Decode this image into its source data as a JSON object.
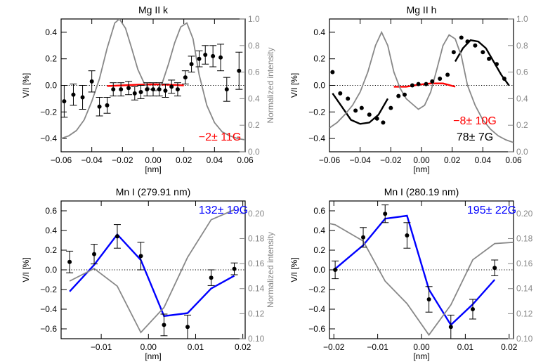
{
  "chart_data": [
    {
      "type": "scatter",
      "title": "Mg II k",
      "xlabel": "[nm]",
      "ylabel": "V/I [%]",
      "y2label": "Normalized intensity",
      "xlim": [
        -0.06,
        0.06
      ],
      "ylim": [
        -0.5,
        0.5
      ],
      "y2lim": [
        0.0,
        1.0
      ],
      "x_ticks": [
        "-0.06",
        "-0.04",
        "-0.02",
        "0.00",
        "0.02",
        "0.04",
        "0.06"
      ],
      "y_ticks": [
        "-0.4",
        "-0.2",
        "0.0",
        "0.2",
        "0.4"
      ],
      "y2_ticks": [
        "0.0",
        "0.2",
        "0.4",
        "0.6",
        "0.8",
        "1.0"
      ],
      "annotations": [
        {
          "text": "−2± 11G",
          "color": "#ff0000"
        }
      ],
      "series": [
        {
          "type": "errorbar",
          "color": "#000000",
          "x": [
            -0.058,
            -0.052,
            -0.046,
            -0.04,
            -0.035,
            -0.03,
            -0.026,
            -0.021,
            -0.016,
            -0.012,
            -0.008,
            -0.004,
            0.0,
            0.004,
            0.008,
            0.012,
            0.016,
            0.021,
            0.025,
            0.03,
            0.034,
            0.039,
            0.044,
            0.048,
            0.056
          ],
          "y": [
            -0.12,
            -0.07,
            -0.09,
            0.03,
            -0.16,
            -0.15,
            -0.03,
            -0.03,
            -0.02,
            -0.06,
            -0.05,
            -0.03,
            -0.03,
            -0.03,
            -0.04,
            -0.01,
            -0.03,
            0.06,
            0.16,
            0.2,
            0.23,
            0.22,
            0.21,
            -0.03,
            0.11
          ],
          "err": [
            0.12,
            0.08,
            0.09,
            0.08,
            0.07,
            0.06,
            0.05,
            0.05,
            0.05,
            0.05,
            0.05,
            0.05,
            0.05,
            0.05,
            0.05,
            0.05,
            0.05,
            0.05,
            0.06,
            0.06,
            0.07,
            0.08,
            0.1,
            0.09,
            0.14
          ]
        },
        {
          "type": "line",
          "color": "#ff0000",
          "x": [
            -0.03,
            -0.02,
            -0.01,
            0.0,
            0.01,
            0.02
          ],
          "y": [
            -0.005,
            0.0,
            0.005,
            0.008,
            0.005,
            0.0
          ]
        },
        {
          "type": "line",
          "color": "#888888",
          "axis": "y2",
          "x": [
            -0.06,
            -0.055,
            -0.05,
            -0.045,
            -0.04,
            -0.035,
            -0.03,
            -0.025,
            -0.022,
            -0.018,
            -0.014,
            -0.01,
            -0.006,
            -0.002,
            0.002,
            0.006,
            0.01,
            0.014,
            0.018,
            0.022,
            0.026,
            0.03,
            0.035,
            0.04,
            0.045,
            0.05,
            0.055,
            0.06
          ],
          "y": [
            0.1,
            0.12,
            0.16,
            0.24,
            0.38,
            0.55,
            0.78,
            0.97,
            1.0,
            0.93,
            0.78,
            0.62,
            0.52,
            0.47,
            0.46,
            0.52,
            0.66,
            0.82,
            0.94,
            0.97,
            0.85,
            0.58,
            0.35,
            0.22,
            0.15,
            0.12,
            0.1,
            0.09
          ]
        }
      ]
    },
    {
      "type": "scatter",
      "title": "Mg II h",
      "xlabel": "[nm]",
      "ylabel": "V/I [%]",
      "xlim": [
        -0.06,
        0.06
      ],
      "ylim": [
        -0.5,
        0.5
      ],
      "y2lim": [
        0.0,
        1.0
      ],
      "x_ticks": [
        "-0.06",
        "-0.04",
        "-0.02",
        "0.00",
        "0.02",
        "0.04",
        "0.06"
      ],
      "y_ticks": [
        "-0.4",
        "-0.2",
        "0.0",
        "0.2",
        "0.4"
      ],
      "y2_ticks": [
        "0.0",
        "0.2",
        "0.4",
        "0.6",
        "0.8",
        "1.0"
      ],
      "annotations": [
        {
          "text": "−8± 10G",
          "color": "#ff0000"
        },
        {
          "text": "78±  7G",
          "color": "#000000"
        }
      ],
      "series": [
        {
          "type": "errorbar",
          "color": "#000000",
          "x": [
            -0.058,
            -0.053,
            -0.048,
            -0.043,
            -0.039,
            -0.034,
            -0.029,
            -0.025,
            -0.02,
            -0.015,
            -0.011,
            -0.006,
            -0.002,
            0.003,
            0.007,
            0.012,
            0.017,
            0.021,
            0.026,
            0.03,
            0.035,
            0.04,
            0.044,
            0.049,
            0.054
          ],
          "y": [
            0.1,
            -0.06,
            -0.1,
            -0.19,
            -0.17,
            -0.22,
            -0.25,
            -0.28,
            -0.17,
            -0.08,
            -0.07,
            0.0,
            0.01,
            0.01,
            0.03,
            0.05,
            0.08,
            0.25,
            0.36,
            0.33,
            0.3,
            0.25,
            0.2,
            0.16,
            0.05
          ]
        },
        {
          "type": "line",
          "color": "#000000",
          "x": [
            -0.058,
            -0.052,
            -0.046,
            -0.04,
            -0.034,
            -0.028,
            -0.022
          ],
          "y": [
            -0.06,
            -0.16,
            -0.26,
            -0.29,
            -0.28,
            -0.22,
            -0.1
          ]
        },
        {
          "type": "line",
          "color": "#000000",
          "x": [
            0.022,
            0.027,
            0.032,
            0.037,
            0.042,
            0.047,
            0.052,
            0.057
          ],
          "y": [
            0.18,
            0.28,
            0.34,
            0.33,
            0.28,
            0.18,
            0.08,
            0.0
          ]
        },
        {
          "type": "line",
          "color": "#ff0000",
          "x": [
            -0.018,
            -0.01,
            -0.002,
            0.006,
            0.014,
            0.022
          ],
          "y": [
            -0.01,
            -0.01,
            0.005,
            0.015,
            0.015,
            -0.01
          ]
        },
        {
          "type": "line",
          "color": "#888888",
          "axis": "y2",
          "x": [
            -0.06,
            -0.055,
            -0.05,
            -0.045,
            -0.04,
            -0.035,
            -0.03,
            -0.026,
            -0.022,
            -0.018,
            -0.014,
            -0.01,
            -0.006,
            -0.002,
            0.002,
            0.006,
            0.01,
            0.014,
            0.018,
            0.022,
            0.026,
            0.03,
            0.035,
            0.04,
            0.045,
            0.05,
            0.055,
            0.06
          ],
          "y": [
            0.18,
            0.22,
            0.28,
            0.35,
            0.45,
            0.6,
            0.8,
            0.9,
            0.8,
            0.6,
            0.48,
            0.4,
            0.36,
            0.32,
            0.35,
            0.45,
            0.62,
            0.8,
            0.88,
            0.85,
            0.72,
            0.5,
            0.35,
            0.24,
            0.17,
            0.12,
            0.09,
            0.07
          ]
        }
      ]
    },
    {
      "type": "scatter",
      "title": "Mn I (279.91 nm)",
      "xlabel": "[nm]",
      "ylabel": "V/I [%]",
      "y2label": "Normalized intensity",
      "xlim": [
        -0.0185,
        0.0205
      ],
      "ylim": [
        -0.7,
        0.7
      ],
      "y2lim": [
        0.1,
        0.21
      ],
      "x_ticks": [
        "-0.01",
        "0.00",
        "0.01",
        "0.02"
      ],
      "y_ticks": [
        "-0.6",
        "-0.4",
        "-0.2",
        "0.0",
        "0.2",
        "0.4",
        "0.6"
      ],
      "y2_ticks": [
        "0.10",
        "0.12",
        "0.14",
        "0.16",
        "0.18",
        "0.20"
      ],
      "annotations": [
        {
          "text": "132± 19G",
          "color": "#0000ff"
        }
      ],
      "series": [
        {
          "type": "errorbar",
          "color": "#000000",
          "x": [
            -0.0167,
            -0.0115,
            -0.0066,
            -0.0016,
            0.0033,
            0.0083,
            0.0133,
            0.0182
          ],
          "y": [
            0.08,
            0.16,
            0.34,
            0.14,
            -0.56,
            -0.58,
            -0.08,
            0.01
          ],
          "err": [
            0.11,
            0.1,
            0.12,
            0.14,
            0.11,
            0.12,
            0.08,
            0.06
          ]
        },
        {
          "type": "line",
          "color": "#0000ff",
          "x": [
            -0.0167,
            -0.0115,
            -0.0066,
            -0.0016,
            0.0033,
            0.0083,
            0.0133,
            0.0182
          ],
          "y": [
            -0.22,
            0.05,
            0.36,
            0.1,
            -0.47,
            -0.44,
            -0.19,
            -0.06
          ]
        },
        {
          "type": "line",
          "color": "#888888",
          "axis": "y2",
          "x": [
            -0.0167,
            -0.0115,
            -0.0066,
            -0.0016,
            0.0033,
            0.0083,
            0.0133,
            0.0182
          ],
          "y": [
            0.146,
            0.156,
            0.142,
            0.105,
            0.125,
            0.165,
            0.195,
            0.203
          ]
        }
      ]
    },
    {
      "type": "scatter",
      "title": "Mn I (280.19 nm)",
      "xlabel": "[nm]",
      "ylabel": "V/I [%]",
      "xlim": [
        -0.021,
        0.021
      ],
      "ylim": [
        -0.7,
        0.7
      ],
      "y2lim": [
        0.1,
        0.21
      ],
      "x_ticks": [
        "-0.02",
        "-0.01",
        "0.00",
        "0.01",
        "0.02"
      ],
      "y_ticks": [
        "-0.6",
        "-0.4",
        "-0.2",
        "0.0",
        "0.2",
        "0.4",
        "0.6"
      ],
      "y2_ticks": [
        "0.10",
        "0.12",
        "0.14",
        "0.16",
        "0.18",
        "0.20"
      ],
      "annotations": [
        {
          "text": "195± 22G",
          "color": "#0000ff"
        }
      ],
      "series": [
        {
          "type": "errorbar",
          "color": "#000000",
          "x": [
            -0.0197,
            -0.0133,
            -0.0083,
            -0.0033,
            0.0017,
            0.0067,
            0.0117,
            0.0167
          ],
          "y": [
            0.0,
            0.33,
            0.57,
            0.35,
            -0.3,
            -0.58,
            -0.4,
            0.02
          ],
          "err": [
            0.09,
            0.1,
            0.09,
            0.13,
            0.13,
            0.12,
            0.1,
            0.08
          ]
        },
        {
          "type": "line",
          "color": "#0000ff",
          "x": [
            -0.0197,
            -0.0133,
            -0.0083,
            -0.0033,
            0.0017,
            0.0067,
            0.0117,
            0.0167
          ],
          "y": [
            0.01,
            0.25,
            0.52,
            0.55,
            -0.2,
            -0.56,
            -0.35,
            -0.1
          ]
        },
        {
          "type": "line",
          "color": "#888888",
          "axis": "y2",
          "x": [
            -0.021,
            -0.0197,
            -0.0133,
            -0.0083,
            -0.0033,
            0.0017,
            0.0067,
            0.0117,
            0.0167,
            0.021
          ],
          "y": [
            0.192,
            0.191,
            0.178,
            0.146,
            0.128,
            0.103,
            0.127,
            0.163,
            0.176,
            0.177
          ]
        }
      ]
    }
  ]
}
